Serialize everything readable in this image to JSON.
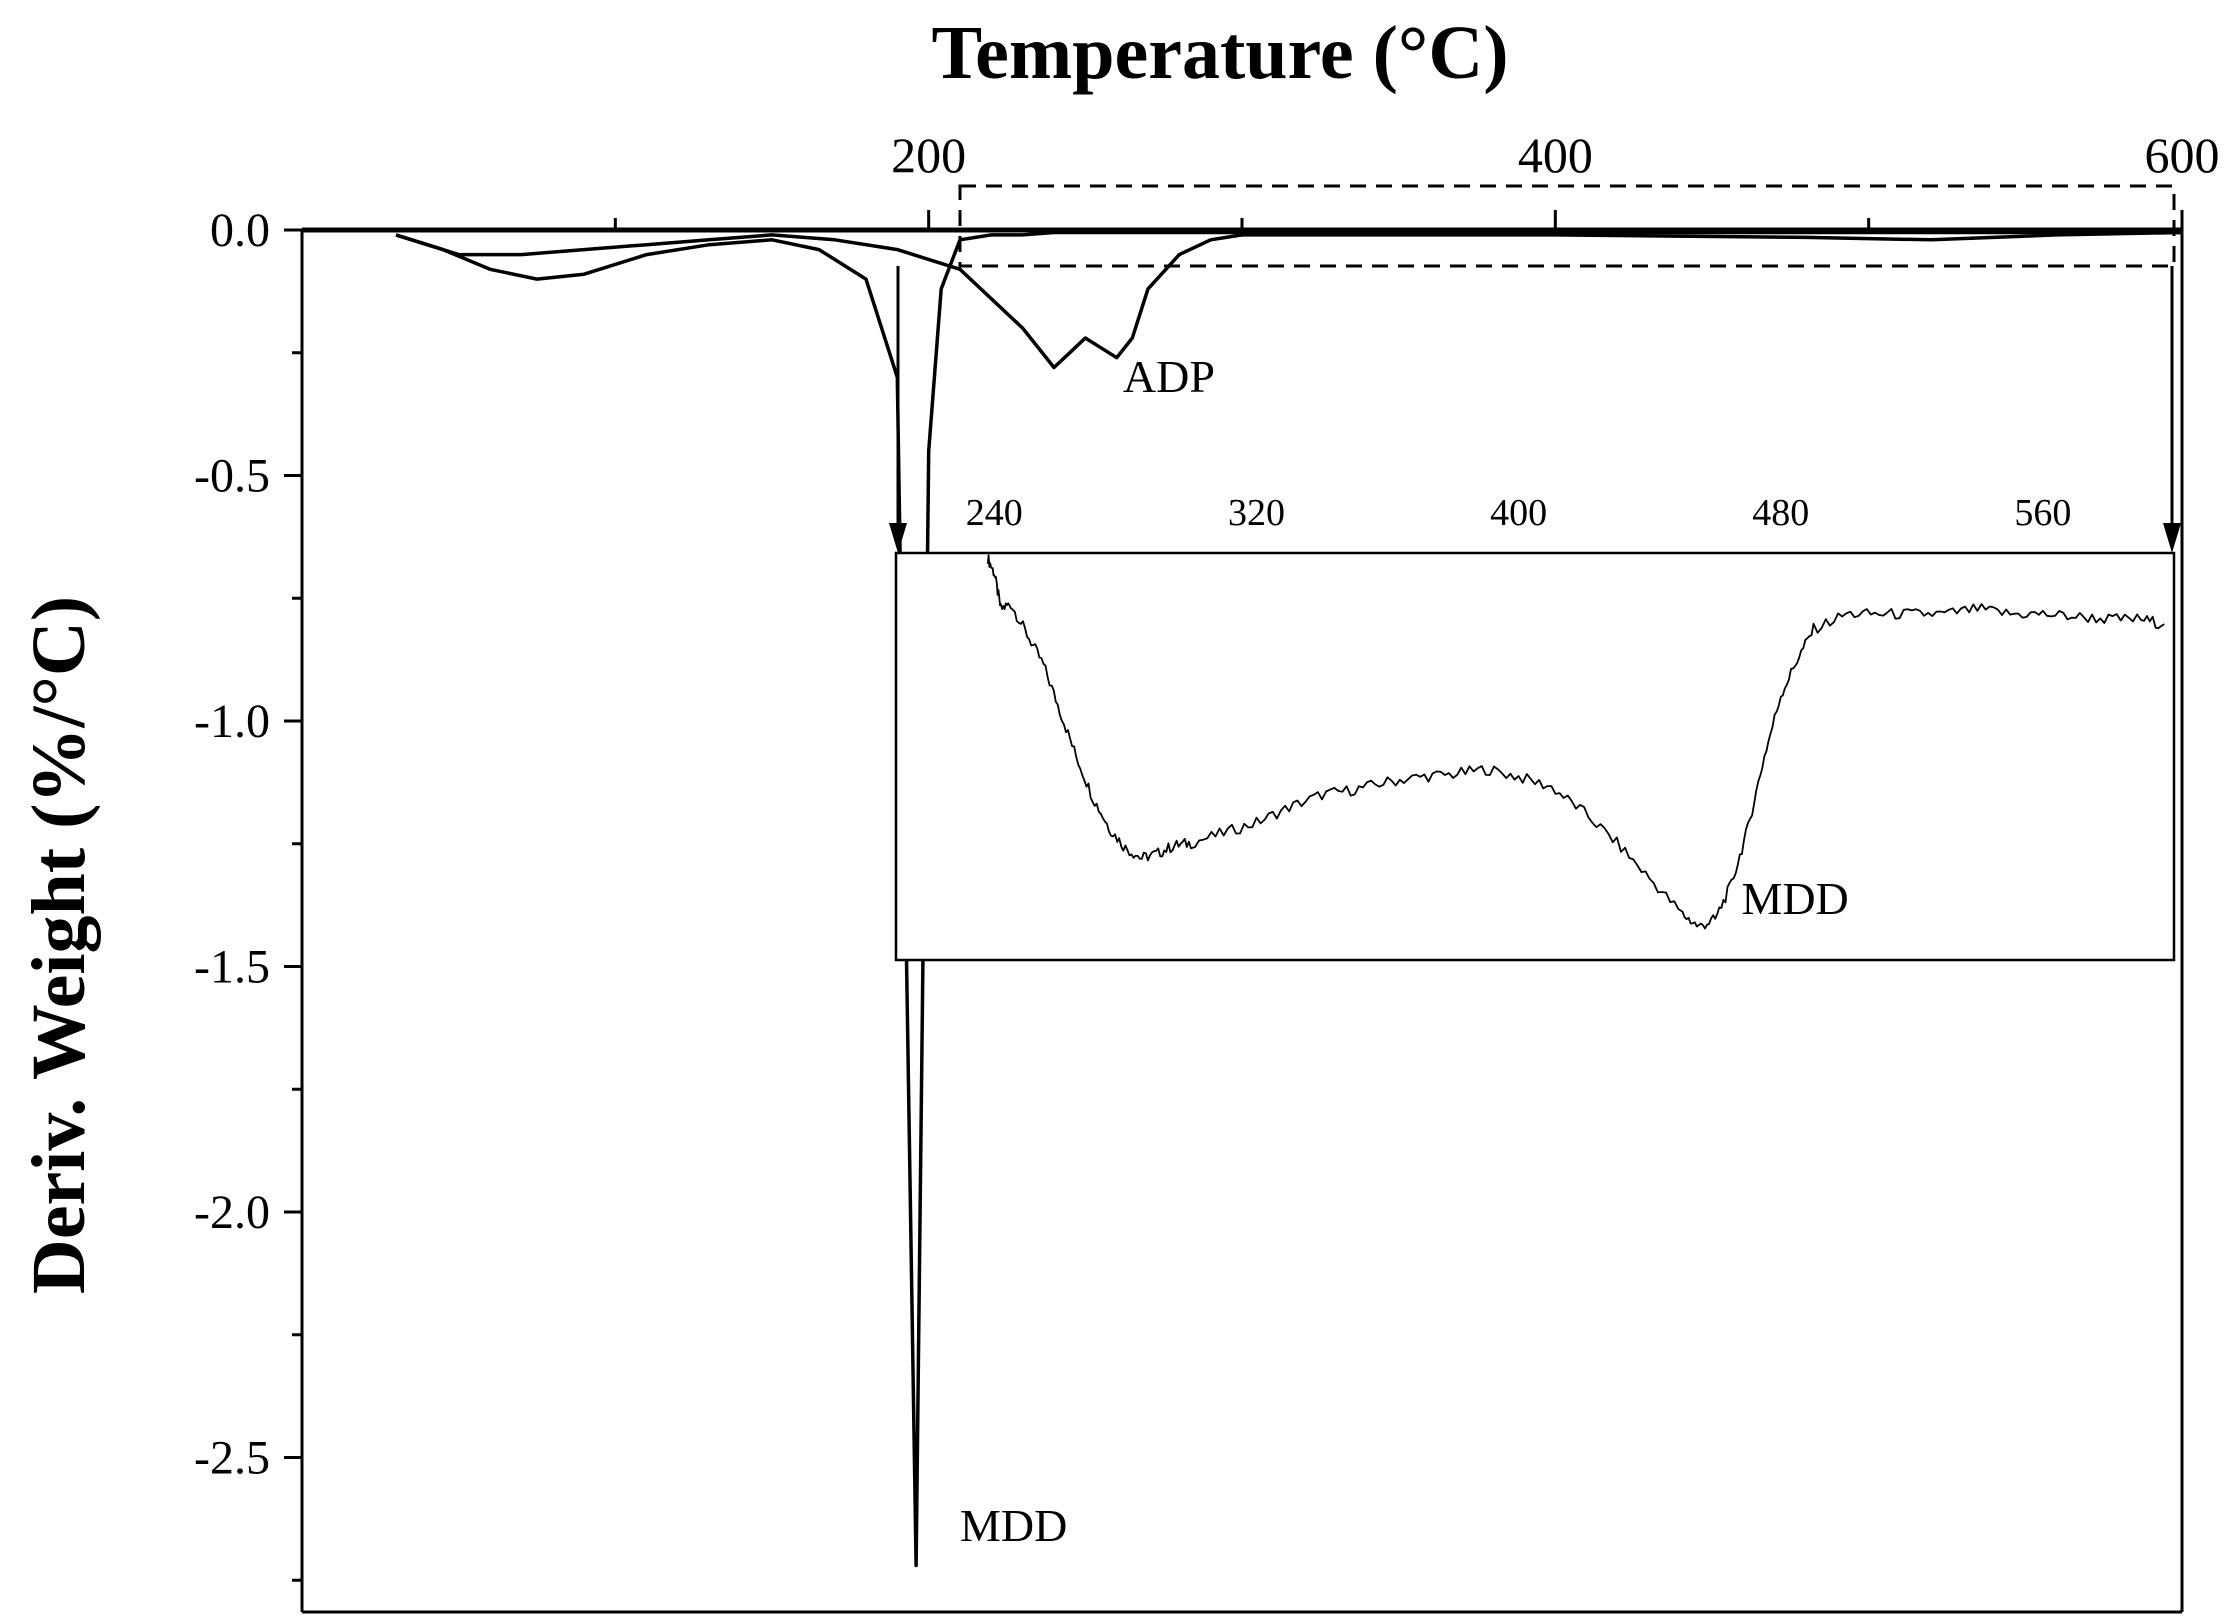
{
  "chart_data": [
    {
      "type": "line",
      "xlabel": "Temperature (°C)",
      "ylabel": "Deriv. Weight (%/°C)",
      "xlim": [
        0,
        600
      ],
      "ylim": [
        -2.8,
        0
      ],
      "x_ticks": [
        {
          "value": 200,
          "label": "200"
        },
        {
          "value": 400,
          "label": "400"
        },
        {
          "value": 600,
          "label": "600"
        }
      ],
      "y_ticks": [
        {
          "value": 0.0,
          "label": "0.0"
        },
        {
          "value": -0.5,
          "label": "-0.5"
        },
        {
          "value": -1.0,
          "label": "-1.0"
        },
        {
          "value": -1.5,
          "label": "-1.5"
        },
        {
          "value": -2.0,
          "label": "-2.0"
        },
        {
          "value": -2.5,
          "label": "-2.5"
        }
      ],
      "series": [
        {
          "x": [
            30,
            45,
            60,
            75,
            90,
            110,
            130,
            150,
            165,
            180,
            190,
            196,
            200,
            204,
            210,
            220,
            230,
            240,
            250,
            260,
            270,
            300,
            400,
            500,
            600
          ],
          "y": [
            -0.01,
            -0.04,
            -0.08,
            -0.1,
            -0.09,
            -0.05,
            -0.03,
            -0.02,
            -0.04,
            -0.1,
            -0.3,
            -2.72,
            -0.45,
            -0.12,
            -0.02,
            -0.01,
            -0.01,
            -0.005,
            -0.005,
            -0.005,
            -0.005,
            -0.005,
            -0.005,
            -0.005,
            -0.005
          ]
        },
        {
          "x": [
            30,
            50,
            70,
            90,
            110,
            130,
            150,
            170,
            190,
            210,
            230,
            240,
            245,
            250,
            255,
            260,
            265,
            270,
            280,
            290,
            300,
            320,
            400,
            480,
            520,
            560,
            600
          ],
          "y": [
            -0.01,
            -0.05,
            -0.05,
            -0.04,
            -0.03,
            -0.02,
            -0.01,
            -0.02,
            -0.04,
            -0.08,
            -0.2,
            -0.28,
            -0.25,
            -0.22,
            -0.24,
            -0.26,
            -0.22,
            -0.12,
            -0.05,
            -0.02,
            -0.01,
            -0.01,
            -0.01,
            -0.015,
            -0.02,
            -0.01,
            -0.005
          ]
        }
      ],
      "annotations": [
        {
          "text": "MDD",
          "x": 210,
          "y": -2.67
        },
        {
          "text": "ADP",
          "x": 262,
          "y": -0.33
        }
      ]
    },
    {
      "type": "line",
      "inset": true,
      "xlim": [
        210,
        600
      ],
      "ylim": [
        -1.6,
        0
      ],
      "x_ticks": [
        {
          "value": 240,
          "label": "240"
        },
        {
          "value": 320,
          "label": "320"
        },
        {
          "value": 400,
          "label": "400"
        },
        {
          "value": 480,
          "label": "480"
        },
        {
          "value": 560,
          "label": "560"
        }
      ],
      "series": [
        {
          "x": [
            238,
            240,
            242,
            245,
            250,
            255,
            260,
            265,
            270,
            275,
            280,
            285,
            290,
            295,
            300,
            310,
            320,
            330,
            340,
            350,
            360,
            370,
            380,
            390,
            400,
            410,
            420,
            430,
            440,
            450,
            455,
            460,
            465,
            470,
            475,
            480,
            485,
            490,
            500,
            510,
            520,
            530,
            540,
            550,
            560,
            570,
            580,
            590,
            597
          ],
          "y": [
            -0.02,
            -0.08,
            -0.22,
            -0.2,
            -0.32,
            -0.44,
            -0.62,
            -0.8,
            -0.96,
            -1.08,
            -1.16,
            -1.2,
            -1.18,
            -1.15,
            -1.14,
            -1.1,
            -1.06,
            -1.0,
            -0.95,
            -0.93,
            -0.9,
            -0.88,
            -0.87,
            -0.85,
            -0.88,
            -0.92,
            -1.02,
            -1.14,
            -1.28,
            -1.42,
            -1.47,
            -1.44,
            -1.3,
            -1.08,
            -0.8,
            -0.56,
            -0.42,
            -0.3,
            -0.24,
            -0.24,
            -0.24,
            -0.24,
            -0.22,
            -0.24,
            -0.24,
            -0.25,
            -0.26,
            -0.26,
            -0.28
          ]
        }
      ],
      "annotations": [
        {
          "text": "MDD",
          "x": 468,
          "y": -1.42
        }
      ]
    }
  ]
}
